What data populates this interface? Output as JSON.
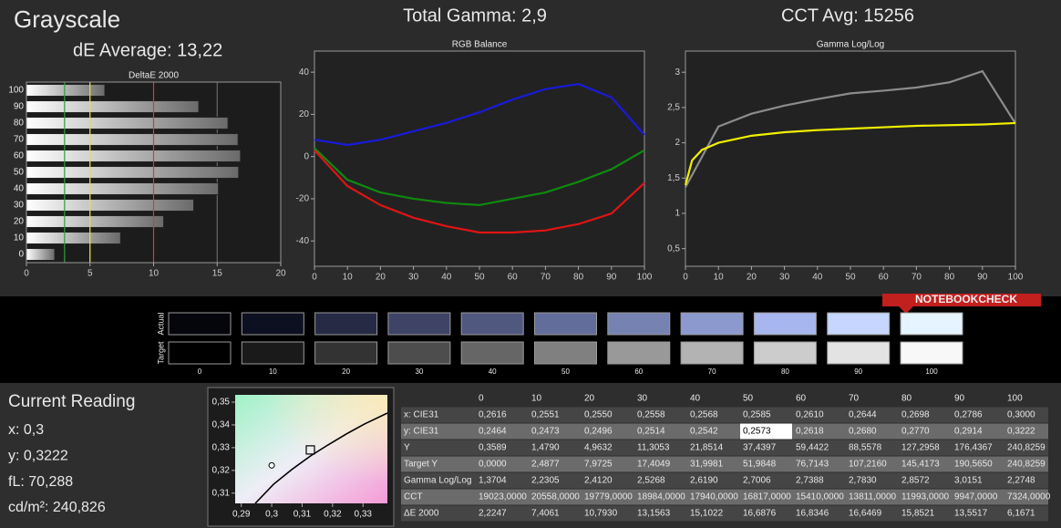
{
  "header": {
    "title": "Grayscale",
    "de_average": "dE Average: 13,22",
    "total_gamma": "Total Gamma: 2,9",
    "cct_avg": "CCT Avg: 15256"
  },
  "chart_data": [
    {
      "type": "bar",
      "title": "DeltaE 2000",
      "categories": [
        "0",
        "10",
        "20",
        "30",
        "40",
        "50",
        "60",
        "70",
        "80",
        "90",
        "100"
      ],
      "values": [
        2.2247,
        7.4061,
        10.793,
        13.1563,
        15.1022,
        16.6876,
        16.8346,
        16.6469,
        15.8521,
        13.5517,
        6.1671
      ],
      "xlim": [
        0,
        20
      ],
      "xticks": [
        0,
        5,
        10,
        15,
        20
      ],
      "grid": true,
      "reference_lines": [
        {
          "value": 3,
          "color": "#2e9e3a"
        },
        {
          "value": 5,
          "color": "#e6e04a"
        },
        {
          "value": 10,
          "color": "#d93a3a"
        }
      ]
    },
    {
      "type": "line",
      "title": "RGB Balance",
      "x": [
        0,
        10,
        20,
        30,
        40,
        50,
        60,
        70,
        80,
        90,
        100
      ],
      "series": [
        {
          "color": "#1a1adc",
          "values": [
            8,
            5.5,
            8,
            12,
            16,
            21,
            27,
            32,
            34.4,
            28,
            10.3
          ]
        },
        {
          "color": "#0f8a0f",
          "values": [
            4,
            -11,
            -17,
            -20,
            -22,
            -23,
            -20,
            -17,
            -12,
            -6,
            3
          ]
        },
        {
          "color": "#e01414",
          "values": [
            3,
            -14,
            -23,
            -29,
            -33,
            -36,
            -36,
            -35,
            -32,
            -27,
            -12.5
          ]
        }
      ],
      "xlim": [
        0,
        100
      ],
      "xticks": [
        0,
        10,
        20,
        30,
        40,
        50,
        60,
        70,
        80,
        90,
        100
      ],
      "ylim": [
        -52,
        50
      ],
      "yticks": [
        -40,
        -20,
        0,
        20,
        40
      ]
    },
    {
      "type": "line",
      "title": "Gamma Log/Log",
      "series": [
        {
          "color": "#8c8c8c",
          "x": [
            0,
            10,
            20,
            30,
            40,
            50,
            60,
            70,
            80,
            90,
            100
          ],
          "values": [
            1.3704,
            2.2305,
            2.412,
            2.5268,
            2.619,
            2.7006,
            2.7388,
            2.783,
            2.8572,
            3.0151,
            2.2748
          ]
        },
        {
          "color": "#f0f000",
          "x": [
            0,
            2,
            5,
            10,
            20,
            30,
            40,
            50,
            60,
            70,
            80,
            90,
            100
          ],
          "values": [
            1.4,
            1.75,
            1.9,
            2.0,
            2.1,
            2.15,
            2.18,
            2.2,
            2.22,
            2.24,
            2.25,
            2.26,
            2.28
          ]
        }
      ],
      "xlim": [
        0,
        100
      ],
      "xticks": [
        0,
        10,
        20,
        30,
        40,
        50,
        60,
        70,
        80,
        90,
        100
      ],
      "ylim": [
        0.25,
        3.3
      ],
      "yticks": [
        {
          "value": 0.5,
          "label": "0,5"
        },
        1,
        {
          "value": 1.5,
          "label": "1,5"
        },
        2,
        {
          "value": 2.5,
          "label": "2,5"
        },
        3
      ]
    },
    {
      "type": "scatter",
      "series": [
        {
          "color": "#000000",
          "x": [
            0.2946,
            0.3006,
            0.3066,
            0.3128,
            0.3185,
            0.3245,
            0.3305,
            0.338
          ],
          "values": [
            0.3055,
            0.3139,
            0.3204,
            0.3264,
            0.3312,
            0.336,
            0.3404,
            0.3452
          ]
        },
        {
          "color": "#000000",
          "marker": "circle",
          "x": [
            0.3
          ],
          "values": [
            0.3222
          ]
        },
        {
          "color": "#000000",
          "marker": "square",
          "x": [
            0.3127
          ],
          "values": [
            0.329
          ]
        }
      ],
      "xlim": [
        0.288,
        0.338
      ],
      "xticks": [
        {
          "value": 0.29,
          "label": "0,29"
        },
        {
          "value": 0.3,
          "label": "0,3"
        },
        {
          "value": 0.31,
          "label": "0,31"
        },
        {
          "value": 0.32,
          "label": "0,32"
        },
        {
          "value": 0.33,
          "label": "0,33"
        }
      ],
      "ylim": [
        0.3055,
        0.3532
      ],
      "yticks": [
        {
          "value": 0.31,
          "label": "0,31"
        },
        {
          "value": 0.32,
          "label": "0,32"
        },
        {
          "value": 0.33,
          "label": "0,33"
        },
        {
          "value": 0.34,
          "label": "0,34"
        },
        {
          "value": 0.35,
          "label": "0,35"
        }
      ]
    }
  ],
  "logo": "NOTEBOOKCHECK",
  "swatches": {
    "actual_label": "Actual",
    "target_label": "Target",
    "labels": [
      "0",
      "10",
      "20",
      "30",
      "40",
      "50",
      "60",
      "70",
      "80",
      "90",
      "100"
    ],
    "actual": [
      "#05060b",
      "#0d1020",
      "#262a45",
      "#3f4466",
      "#505880",
      "#636d9c",
      "#7682b2",
      "#8c99cf",
      "#a7b6ee",
      "#c6d6ff",
      "#e6f4ff"
    ],
    "target": [
      "#000000",
      "#1a1a1a",
      "#333333",
      "#4d4d4d",
      "#666666",
      "#808080",
      "#999999",
      "#b3b3b3",
      "#cccccc",
      "#e3e3e3",
      "#f8f8f8"
    ]
  },
  "current_reading": {
    "title": "Current Reading",
    "lines": [
      "x: 0,3",
      "y: 0,3222",
      "fL: 70,288",
      "cd/m²: 240,826"
    ]
  },
  "table": {
    "columns": [
      "0",
      "10",
      "20",
      "30",
      "40",
      "50",
      "60",
      "70",
      "80",
      "90",
      "100"
    ],
    "highlight": {
      "row": 1,
      "col": 5
    },
    "rows": [
      {
        "label": "x: CIE31",
        "cells": [
          "0,2616",
          "0,2551",
          "0,2550",
          "0,2558",
          "0,2568",
          "0,2585",
          "0,2610",
          "0,2644",
          "0,2698",
          "0,2786",
          "0,3000"
        ]
      },
      {
        "label": "y: CIE31",
        "cells": [
          "0,2464",
          "0,2473",
          "0,2496",
          "0,2514",
          "0,2542",
          "0,2573",
          "0,2618",
          "0,2680",
          "0,2770",
          "0,2914",
          "0,3222"
        ]
      },
      {
        "label": "Y",
        "cells": [
          "0,3589",
          "1,4790",
          "4,9632",
          "11,3053",
          "21,8514",
          "37,4397",
          "59,4422",
          "88,5578",
          "127,2958",
          "176,4367",
          "240,8259"
        ]
      },
      {
        "label": "Target Y",
        "cells": [
          "0,0000",
          "2,4877",
          "7,9725",
          "17,4049",
          "31,9981",
          "51,9848",
          "76,7143",
          "107,2160",
          "145,4173",
          "190,5650",
          "240,8259"
        ]
      },
      {
        "label": "Gamma Log/Log",
        "cells": [
          "1,3704",
          "2,2305",
          "2,4120",
          "2,5268",
          "2,6190",
          "2,7006",
          "2,7388",
          "2,7830",
          "2,8572",
          "3,0151",
          "2,2748"
        ]
      },
      {
        "label": "CCT",
        "cells": [
          "19023,0000",
          "20558,0000",
          "19779,0000",
          "18984,0000",
          "17940,0000",
          "16817,0000",
          "15410,0000",
          "13811,0000",
          "11993,0000",
          "9947,0000",
          "7324,0000"
        ]
      },
      {
        "label": "ΔE 2000",
        "cells": [
          "2,2247",
          "7,4061",
          "10,7930",
          "13,1563",
          "15,1022",
          "16,6876",
          "16,8346",
          "16,6469",
          "15,8521",
          "13,5517",
          "6,1671"
        ]
      }
    ]
  }
}
